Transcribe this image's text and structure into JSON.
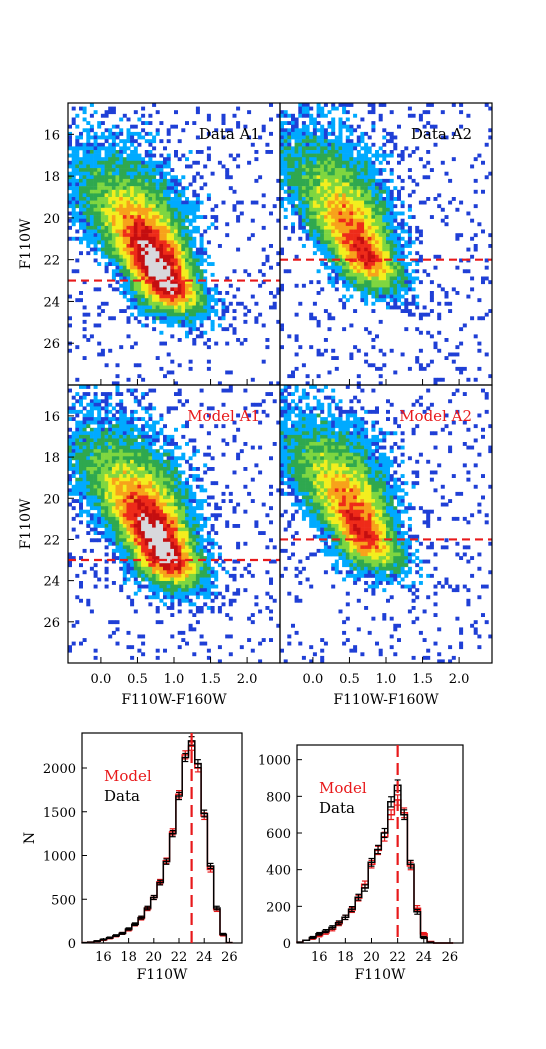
{
  "colors": {
    "density_levels": [
      "#1f3fd6",
      "#00aaff",
      "#2fa84f",
      "#7fd640",
      "#f3ee1e",
      "#f7a21b",
      "#ee2b19",
      "#c40e10",
      "#d8d8dc"
    ],
    "model": "#e8191b",
    "data": "#000000",
    "cut_line": "#e8191b"
  },
  "chart_data": [
    {
      "type": "heatmap",
      "panel": "top-left",
      "label": "Data A1",
      "label_color": "#000000",
      "xlim": [
        -0.45,
        2.45
      ],
      "ylim": [
        28,
        14.5
      ],
      "xticks": [],
      "yticks": [
        "16",
        "18",
        "20",
        "22",
        "24",
        "26"
      ],
      "xlabel": "",
      "ylabel": "F110W",
      "cut_line_mag": 23.0,
      "density_center": [
        0.85,
        22.9
      ],
      "density_peak": 9,
      "seed": 11
    },
    {
      "type": "heatmap",
      "panel": "top-right",
      "label": "Data A2",
      "label_color": "#000000",
      "xlim": [
        -0.45,
        2.45
      ],
      "ylim": [
        28,
        14.5
      ],
      "xticks": [],
      "yticks": [],
      "xlabel": "",
      "ylabel": "",
      "cut_line_mag": 22.0,
      "density_center": [
        0.7,
        21.8
      ],
      "density_peak": 7,
      "seed": 23
    },
    {
      "type": "heatmap",
      "panel": "bottom-left",
      "label": "Model A1",
      "label_color": "#e8191b",
      "xlim": [
        -0.45,
        2.45
      ],
      "ylim": [
        28,
        14.5
      ],
      "xticks": [
        "0.0",
        "0.5",
        "1.0",
        "1.5",
        "2.0"
      ],
      "yticks": [
        "16",
        "18",
        "20",
        "22",
        "24",
        "26"
      ],
      "xlabel": "F110W-F160W",
      "ylabel": "F110W",
      "cut_line_mag": 23.0,
      "density_center": [
        0.85,
        22.6
      ],
      "density_peak": 9,
      "seed": 37
    },
    {
      "type": "heatmap",
      "panel": "bottom-right",
      "label": "Model A2",
      "label_color": "#e8191b",
      "xlim": [
        -0.45,
        2.45
      ],
      "ylim": [
        28,
        14.5
      ],
      "xticks": [
        "0.0",
        "0.5",
        "1.0",
        "1.5",
        "2.0"
      ],
      "yticks": [],
      "xlabel": "F110W-F160W",
      "ylabel": "",
      "cut_line_mag": 22.0,
      "density_center": [
        0.7,
        21.8
      ],
      "density_peak": 7,
      "seed": 51
    },
    {
      "type": "line",
      "panel": "histogram-left",
      "xlabel": "F110W",
      "ylabel": "N",
      "xlim": [
        14.3,
        27
      ],
      "ylim": [
        0,
        2400
      ],
      "xticks": [
        "16",
        "18",
        "20",
        "22",
        "24",
        "26"
      ],
      "yticks": [
        "0",
        "500",
        "1000",
        "1500",
        "2000"
      ],
      "legend": [
        "Model",
        "Data"
      ],
      "legend_placement": "upper-left",
      "cut_line_mag": 23.0,
      "x": [
        14.5,
        15.0,
        15.5,
        16.0,
        16.5,
        17.0,
        17.5,
        18.0,
        18.5,
        19.0,
        19.5,
        20.0,
        20.5,
        21.0,
        21.5,
        22.0,
        22.5,
        23.0,
        23.5,
        24.0,
        24.5,
        25.0,
        25.5,
        26.0
      ],
      "series": [
        {
          "name": "Model",
          "values": [
            5,
            10,
            20,
            35,
            55,
            80,
            110,
            150,
            210,
            280,
            390,
            520,
            700,
            940,
            1270,
            1700,
            2150,
            2250,
            2000,
            1450,
            840,
            380,
            90,
            5
          ]
        },
        {
          "name": "Data",
          "values": [
            5,
            10,
            22,
            40,
            60,
            85,
            110,
            160,
            215,
            290,
            400,
            520,
            690,
            930,
            1250,
            1680,
            2120,
            2310,
            2050,
            1480,
            880,
            400,
            100,
            5
          ]
        }
      ]
    },
    {
      "type": "line",
      "panel": "histogram-right",
      "xlabel": "F110W",
      "ylabel": "",
      "xlim": [
        14.3,
        27
      ],
      "ylim": [
        0,
        1080
      ],
      "xticks": [
        "16",
        "18",
        "20",
        "22",
        "24",
        "26"
      ],
      "yticks": [
        "0",
        "200",
        "400",
        "600",
        "800",
        "1000"
      ],
      "legend": [
        "Model",
        "Data"
      ],
      "legend_placement": "upper-left",
      "cut_line_mag": 22.0,
      "x": [
        14.5,
        15.0,
        15.5,
        16.0,
        16.5,
        17.0,
        17.5,
        18.0,
        18.5,
        19.0,
        19.5,
        20.0,
        20.5,
        21.0,
        21.5,
        22.0,
        22.5,
        23.0,
        23.5,
        24.0,
        24.5,
        25.0,
        25.5,
        26.0
      ],
      "series": [
        {
          "name": "Model",
          "values": [
            5,
            15,
            25,
            40,
            55,
            75,
            105,
            140,
            180,
            245,
            320,
            430,
            505,
            580,
            700,
            780,
            710,
            420,
            190,
            50,
            8,
            0,
            0,
            0
          ]
        },
        {
          "name": "Data",
          "values": [
            5,
            15,
            30,
            50,
            65,
            85,
            110,
            140,
            185,
            250,
            300,
            440,
            510,
            600,
            770,
            860,
            700,
            430,
            170,
            30,
            5,
            0,
            0,
            0
          ]
        }
      ]
    }
  ]
}
